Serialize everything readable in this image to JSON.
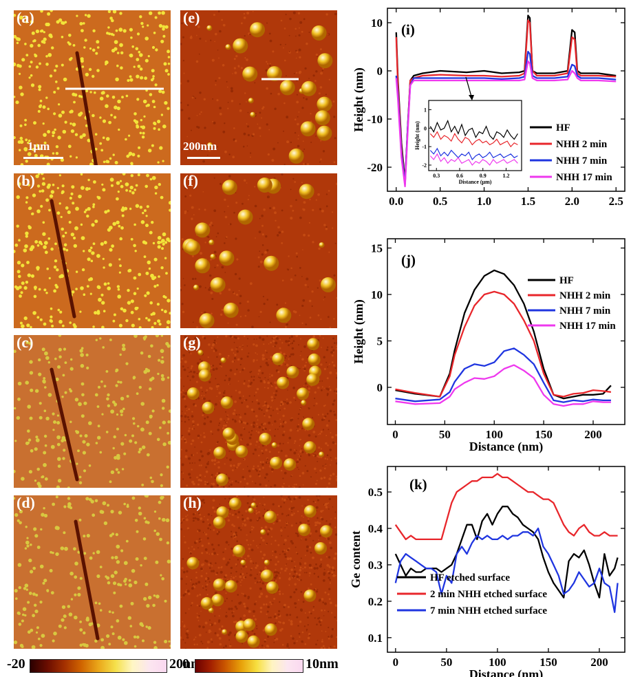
{
  "afm_panels": {
    "left": [
      {
        "label": "(a)",
        "scale_label": "1μm"
      },
      {
        "label": "(b)"
      },
      {
        "label": "(c)"
      },
      {
        "label": "(d)"
      }
    ],
    "right": [
      {
        "label": "(e)",
        "scale_label": "200nm"
      },
      {
        "label": "(f)"
      },
      {
        "label": "(g)"
      },
      {
        "label": "(h)"
      }
    ]
  },
  "colorbars": {
    "left": {
      "min": "-20",
      "max": "20nm"
    },
    "right": {
      "min": "0",
      "max": "10nm"
    }
  },
  "colors": {
    "HF": "#000000",
    "NHH2": "#e8262b",
    "NHH7": "#1f35e0",
    "NHH17": "#ee38ee"
  },
  "chart_data": [
    {
      "panel": "(i)",
      "type": "line",
      "ylabel": "Height (nm)",
      "xlabel": "",
      "xlim": [
        -0.1,
        2.6
      ],
      "ylim": [
        -25,
        13
      ],
      "xticks": [
        "0.0",
        "0.5",
        "1.0",
        "1.5",
        "2.0",
        "2.5"
      ],
      "yticks": [
        "10",
        "0",
        "-10",
        "-20"
      ],
      "legend": [
        "HF",
        "NHH 2 min",
        "NHH 7 min",
        "NHH 17 min"
      ],
      "series": [
        {
          "name": "HF",
          "x": [
            0,
            0.02,
            0.06,
            0.1,
            0.13,
            0.16,
            0.2,
            0.3,
            0.5,
            0.8,
            1.0,
            1.2,
            1.4,
            1.46,
            1.5,
            1.52,
            1.55,
            1.6,
            1.8,
            1.95,
            2.0,
            2.03,
            2.06,
            2.1,
            2.3,
            2.5
          ],
          "y": [
            8,
            -2,
            -15,
            -23,
            -12,
            -2,
            -1,
            -0.5,
            0,
            -0.3,
            0,
            -0.5,
            -0.3,
            0,
            11.5,
            11,
            0,
            -0.5,
            -0.5,
            0,
            8.5,
            8,
            0,
            -0.5,
            -0.5,
            -1
          ]
        },
        {
          "name": "NHH 2 min",
          "x": [
            0,
            0.02,
            0.06,
            0.1,
            0.13,
            0.16,
            0.2,
            0.3,
            0.5,
            0.8,
            1.0,
            1.2,
            1.4,
            1.46,
            1.5,
            1.52,
            1.55,
            1.6,
            1.8,
            1.95,
            2.0,
            2.03,
            2.06,
            2.1,
            2.3,
            2.5
          ],
          "y": [
            7,
            -3,
            -16,
            -23.5,
            -12,
            -2,
            -1.5,
            -1,
            -0.8,
            -1,
            -1,
            -1.2,
            -1,
            -0.5,
            10.5,
            10,
            0,
            -1,
            -1,
            -0.5,
            7,
            6.5,
            -0.5,
            -1,
            -1,
            -1.2
          ]
        },
        {
          "name": "NHH 7 min",
          "x": [
            0,
            0.02,
            0.06,
            0.1,
            0.13,
            0.16,
            0.2,
            0.3,
            0.5,
            0.8,
            1.0,
            1.2,
            1.4,
            1.46,
            1.5,
            1.52,
            1.55,
            1.6,
            1.8,
            1.95,
            2.0,
            2.03,
            2.06,
            2.1,
            2.3,
            2.5
          ],
          "y": [
            -1,
            -5,
            -17,
            -23.5,
            -12,
            -3,
            -1.5,
            -1.5,
            -1.5,
            -1.5,
            -1.5,
            -1.7,
            -1.5,
            -1.2,
            4,
            3.5,
            -1,
            -1.5,
            -1.5,
            -1.2,
            1.3,
            1,
            -1,
            -1.5,
            -1.5,
            -1.8
          ]
        },
        {
          "name": "NHH 17 min",
          "x": [
            0,
            0.02,
            0.06,
            0.1,
            0.13,
            0.16,
            0.2,
            0.3,
            0.5,
            0.8,
            1.0,
            1.2,
            1.4,
            1.46,
            1.5,
            1.52,
            1.55,
            1.6,
            1.8,
            1.95,
            2.0,
            2.03,
            2.06,
            2.1,
            2.3,
            2.5
          ],
          "y": [
            -1.5,
            -6,
            -18,
            -24,
            -13,
            -3,
            -2,
            -2,
            -2,
            -2,
            -2,
            -2,
            -2,
            -1.8,
            2,
            1.5,
            -1.5,
            -2,
            -2,
            -1.8,
            0,
            -0.5,
            -1.5,
            -2,
            -2,
            -2.2
          ]
        }
      ],
      "inset": {
        "xlabel": "Distance (μm)",
        "ylabel": "Height (nm)",
        "xlim": [
          0.2,
          1.4
        ],
        "ylim": [
          -2.3,
          1.5
        ],
        "xticks": [
          "0.3",
          "0.6",
          "0.9",
          "1.2"
        ],
        "yticks": [
          "1",
          "0",
          "-1",
          "-2"
        ],
        "series": [
          {
            "name": "HF",
            "y": [
              0.1,
              -0.2,
              0.3,
              -0.1,
              0.0,
              0.4,
              -0.2,
              0.1,
              -0.3,
              0.2,
              -0.4,
              -0.1,
              0.0,
              -0.5,
              -0.2,
              -0.3,
              0.1,
              -0.4,
              -0.6,
              -0.2,
              -0.3,
              -0.5,
              -0.1,
              -0.4,
              -0.6,
              -0.3
            ]
          },
          {
            "name": "NHH 2 min",
            "y": [
              -0.3,
              -0.5,
              -0.2,
              -0.6,
              -0.4,
              -0.5,
              -0.7,
              -0.3,
              -0.6,
              -0.8,
              -0.5,
              -0.6,
              -0.9,
              -0.7,
              -0.6,
              -0.8,
              -0.7,
              -0.9,
              -0.8,
              -0.6,
              -0.9,
              -0.8,
              -0.7,
              -1.0,
              -0.8,
              -0.9
            ]
          },
          {
            "name": "NHH 7 min",
            "y": [
              -1.2,
              -1.4,
              -1.1,
              -1.5,
              -1.3,
              -1.5,
              -1.2,
              -1.4,
              -1.6,
              -1.4,
              -1.5,
              -1.3,
              -1.7,
              -1.5,
              -1.4,
              -1.6,
              -1.5,
              -1.3,
              -1.6,
              -1.5,
              -1.4,
              -1.6,
              -1.5,
              -1.4,
              -1.6,
              -1.5
            ]
          },
          {
            "name": "NHH 17 min",
            "y": [
              -1.5,
              -1.7,
              -1.4,
              -1.8,
              -1.6,
              -1.9,
              -1.7,
              -1.8,
              -1.6,
              -1.9,
              -1.8,
              -1.7,
              -2.0,
              -1.8,
              -1.9,
              -1.7,
              -1.8,
              -2.0,
              -1.7,
              -1.9,
              -1.8,
              -1.7,
              -1.9,
              -1.8,
              -1.7,
              -1.9
            ]
          }
        ]
      }
    },
    {
      "panel": "(j)",
      "type": "line",
      "ylabel": "Height (nm)",
      "xlabel": "Distance (nm)",
      "xlim": [
        -8,
        232
      ],
      "ylim": [
        -4,
        16
      ],
      "xticks": [
        "0",
        "50",
        "100",
        "150",
        "200"
      ],
      "yticks": [
        "15",
        "10",
        "5",
        "0"
      ],
      "legend": [
        "HF",
        "NHH 2 min",
        "NHH 7 min",
        "NHH 17 min"
      ],
      "series": [
        {
          "name": "HF",
          "x": [
            0,
            20,
            45,
            55,
            60,
            70,
            80,
            90,
            100,
            110,
            120,
            130,
            140,
            150,
            160,
            170,
            180,
            190,
            200,
            210,
            218
          ],
          "y": [
            -0.3,
            -0.7,
            -1,
            1.5,
            4,
            8,
            10.5,
            12,
            12.6,
            12.2,
            11,
            9,
            6,
            2,
            -0.8,
            -1.2,
            -1,
            -0.8,
            -0.8,
            -0.7,
            0.2
          ]
        },
        {
          "name": "NHH 2 min",
          "x": [
            0,
            20,
            45,
            55,
            60,
            70,
            80,
            90,
            100,
            110,
            120,
            130,
            140,
            150,
            160,
            170,
            180,
            190,
            200,
            210,
            218
          ],
          "y": [
            -0.2,
            -0.6,
            -1,
            1.2,
            3.5,
            6.5,
            8.8,
            10,
            10.3,
            10,
            9,
            7.2,
            5,
            1.5,
            -0.8,
            -1,
            -0.7,
            -0.6,
            -0.3,
            -0.4,
            -0.5
          ]
        },
        {
          "name": "NHH 7 min",
          "x": [
            0,
            20,
            45,
            55,
            60,
            70,
            80,
            90,
            100,
            110,
            120,
            130,
            140,
            150,
            160,
            170,
            180,
            190,
            200,
            210,
            218
          ],
          "y": [
            -1.2,
            -1.5,
            -1.3,
            -0.5,
            0.6,
            2,
            2.5,
            2.3,
            2.7,
            3.9,
            4.2,
            3.5,
            2.5,
            0.5,
            -1.4,
            -1.6,
            -1.4,
            -1.5,
            -1.3,
            -1.4,
            -1.4
          ]
        },
        {
          "name": "NHH 17 min",
          "x": [
            0,
            20,
            45,
            55,
            60,
            70,
            80,
            90,
            100,
            110,
            120,
            130,
            140,
            150,
            160,
            170,
            180,
            190,
            200,
            210,
            218
          ],
          "y": [
            -1.5,
            -1.8,
            -1.7,
            -1,
            -0.2,
            0.5,
            1,
            0.9,
            1.2,
            2,
            2.4,
            1.8,
            1,
            -0.8,
            -1.8,
            -2,
            -1.8,
            -1.8,
            -1.5,
            -1.6,
            -1.6
          ]
        }
      ]
    },
    {
      "panel": "(k)",
      "type": "line",
      "ylabel": "Ge content",
      "xlabel": "Distance (nm)",
      "xlim": [
        -8,
        225
      ],
      "ylim": [
        0.06,
        0.57
      ],
      "xticks": [
        "0",
        "50",
        "100",
        "150",
        "200"
      ],
      "yticks": [
        "0.5",
        "0.4",
        "0.3",
        "0.2",
        "0.1"
      ],
      "legend": [
        "HF etched surface",
        "2 min NHH etched surface",
        "7 min NHH etched surface"
      ],
      "series": [
        {
          "name": "HF etched surface",
          "x": [
            0,
            5,
            10,
            15,
            20,
            25,
            30,
            35,
            40,
            45,
            50,
            55,
            60,
            65,
            70,
            75,
            80,
            85,
            90,
            95,
            100,
            105,
            110,
            115,
            120,
            125,
            130,
            135,
            140,
            145,
            150,
            155,
            160,
            165,
            170,
            175,
            180,
            185,
            190,
            195,
            200,
            205,
            210,
            215,
            218
          ],
          "y": [
            0.33,
            0.3,
            0.27,
            0.29,
            0.28,
            0.28,
            0.29,
            0.29,
            0.29,
            0.28,
            0.29,
            0.3,
            0.33,
            0.37,
            0.41,
            0.41,
            0.37,
            0.42,
            0.44,
            0.41,
            0.44,
            0.46,
            0.46,
            0.44,
            0.43,
            0.41,
            0.4,
            0.39,
            0.37,
            0.32,
            0.28,
            0.25,
            0.23,
            0.21,
            0.31,
            0.33,
            0.32,
            0.34,
            0.3,
            0.25,
            0.21,
            0.33,
            0.27,
            0.29,
            0.32
          ]
        },
        {
          "name": "2 min NHH etched surface",
          "x": [
            0,
            5,
            10,
            15,
            20,
            25,
            30,
            35,
            40,
            45,
            50,
            55,
            60,
            65,
            70,
            75,
            80,
            85,
            90,
            95,
            100,
            105,
            110,
            115,
            120,
            125,
            130,
            135,
            140,
            145,
            150,
            155,
            160,
            165,
            170,
            175,
            180,
            185,
            190,
            195,
            200,
            205,
            210,
            215,
            218
          ],
          "y": [
            0.41,
            0.39,
            0.37,
            0.38,
            0.37,
            0.37,
            0.37,
            0.37,
            0.37,
            0.37,
            0.42,
            0.47,
            0.5,
            0.51,
            0.52,
            0.53,
            0.53,
            0.54,
            0.54,
            0.54,
            0.55,
            0.54,
            0.54,
            0.53,
            0.52,
            0.51,
            0.5,
            0.5,
            0.49,
            0.48,
            0.48,
            0.47,
            0.44,
            0.41,
            0.39,
            0.38,
            0.4,
            0.41,
            0.39,
            0.38,
            0.38,
            0.39,
            0.38,
            0.38,
            0.38
          ]
        },
        {
          "name": "7 min NHH etched surface",
          "x": [
            0,
            5,
            10,
            15,
            20,
            25,
            30,
            35,
            40,
            45,
            50,
            55,
            60,
            65,
            70,
            75,
            80,
            85,
            90,
            95,
            100,
            105,
            110,
            115,
            120,
            125,
            130,
            135,
            140,
            145,
            150,
            155,
            160,
            165,
            170,
            175,
            180,
            185,
            190,
            195,
            200,
            205,
            210,
            215,
            218
          ],
          "y": [
            0.25,
            0.31,
            0.33,
            0.32,
            0.31,
            0.3,
            0.29,
            0.29,
            0.28,
            0.22,
            0.27,
            0.25,
            0.33,
            0.35,
            0.33,
            0.36,
            0.38,
            0.37,
            0.38,
            0.37,
            0.37,
            0.38,
            0.37,
            0.38,
            0.38,
            0.39,
            0.39,
            0.38,
            0.4,
            0.35,
            0.33,
            0.3,
            0.27,
            0.22,
            0.23,
            0.25,
            0.28,
            0.26,
            0.24,
            0.25,
            0.29,
            0.25,
            0.24,
            0.17,
            0.25
          ]
        }
      ]
    }
  ]
}
